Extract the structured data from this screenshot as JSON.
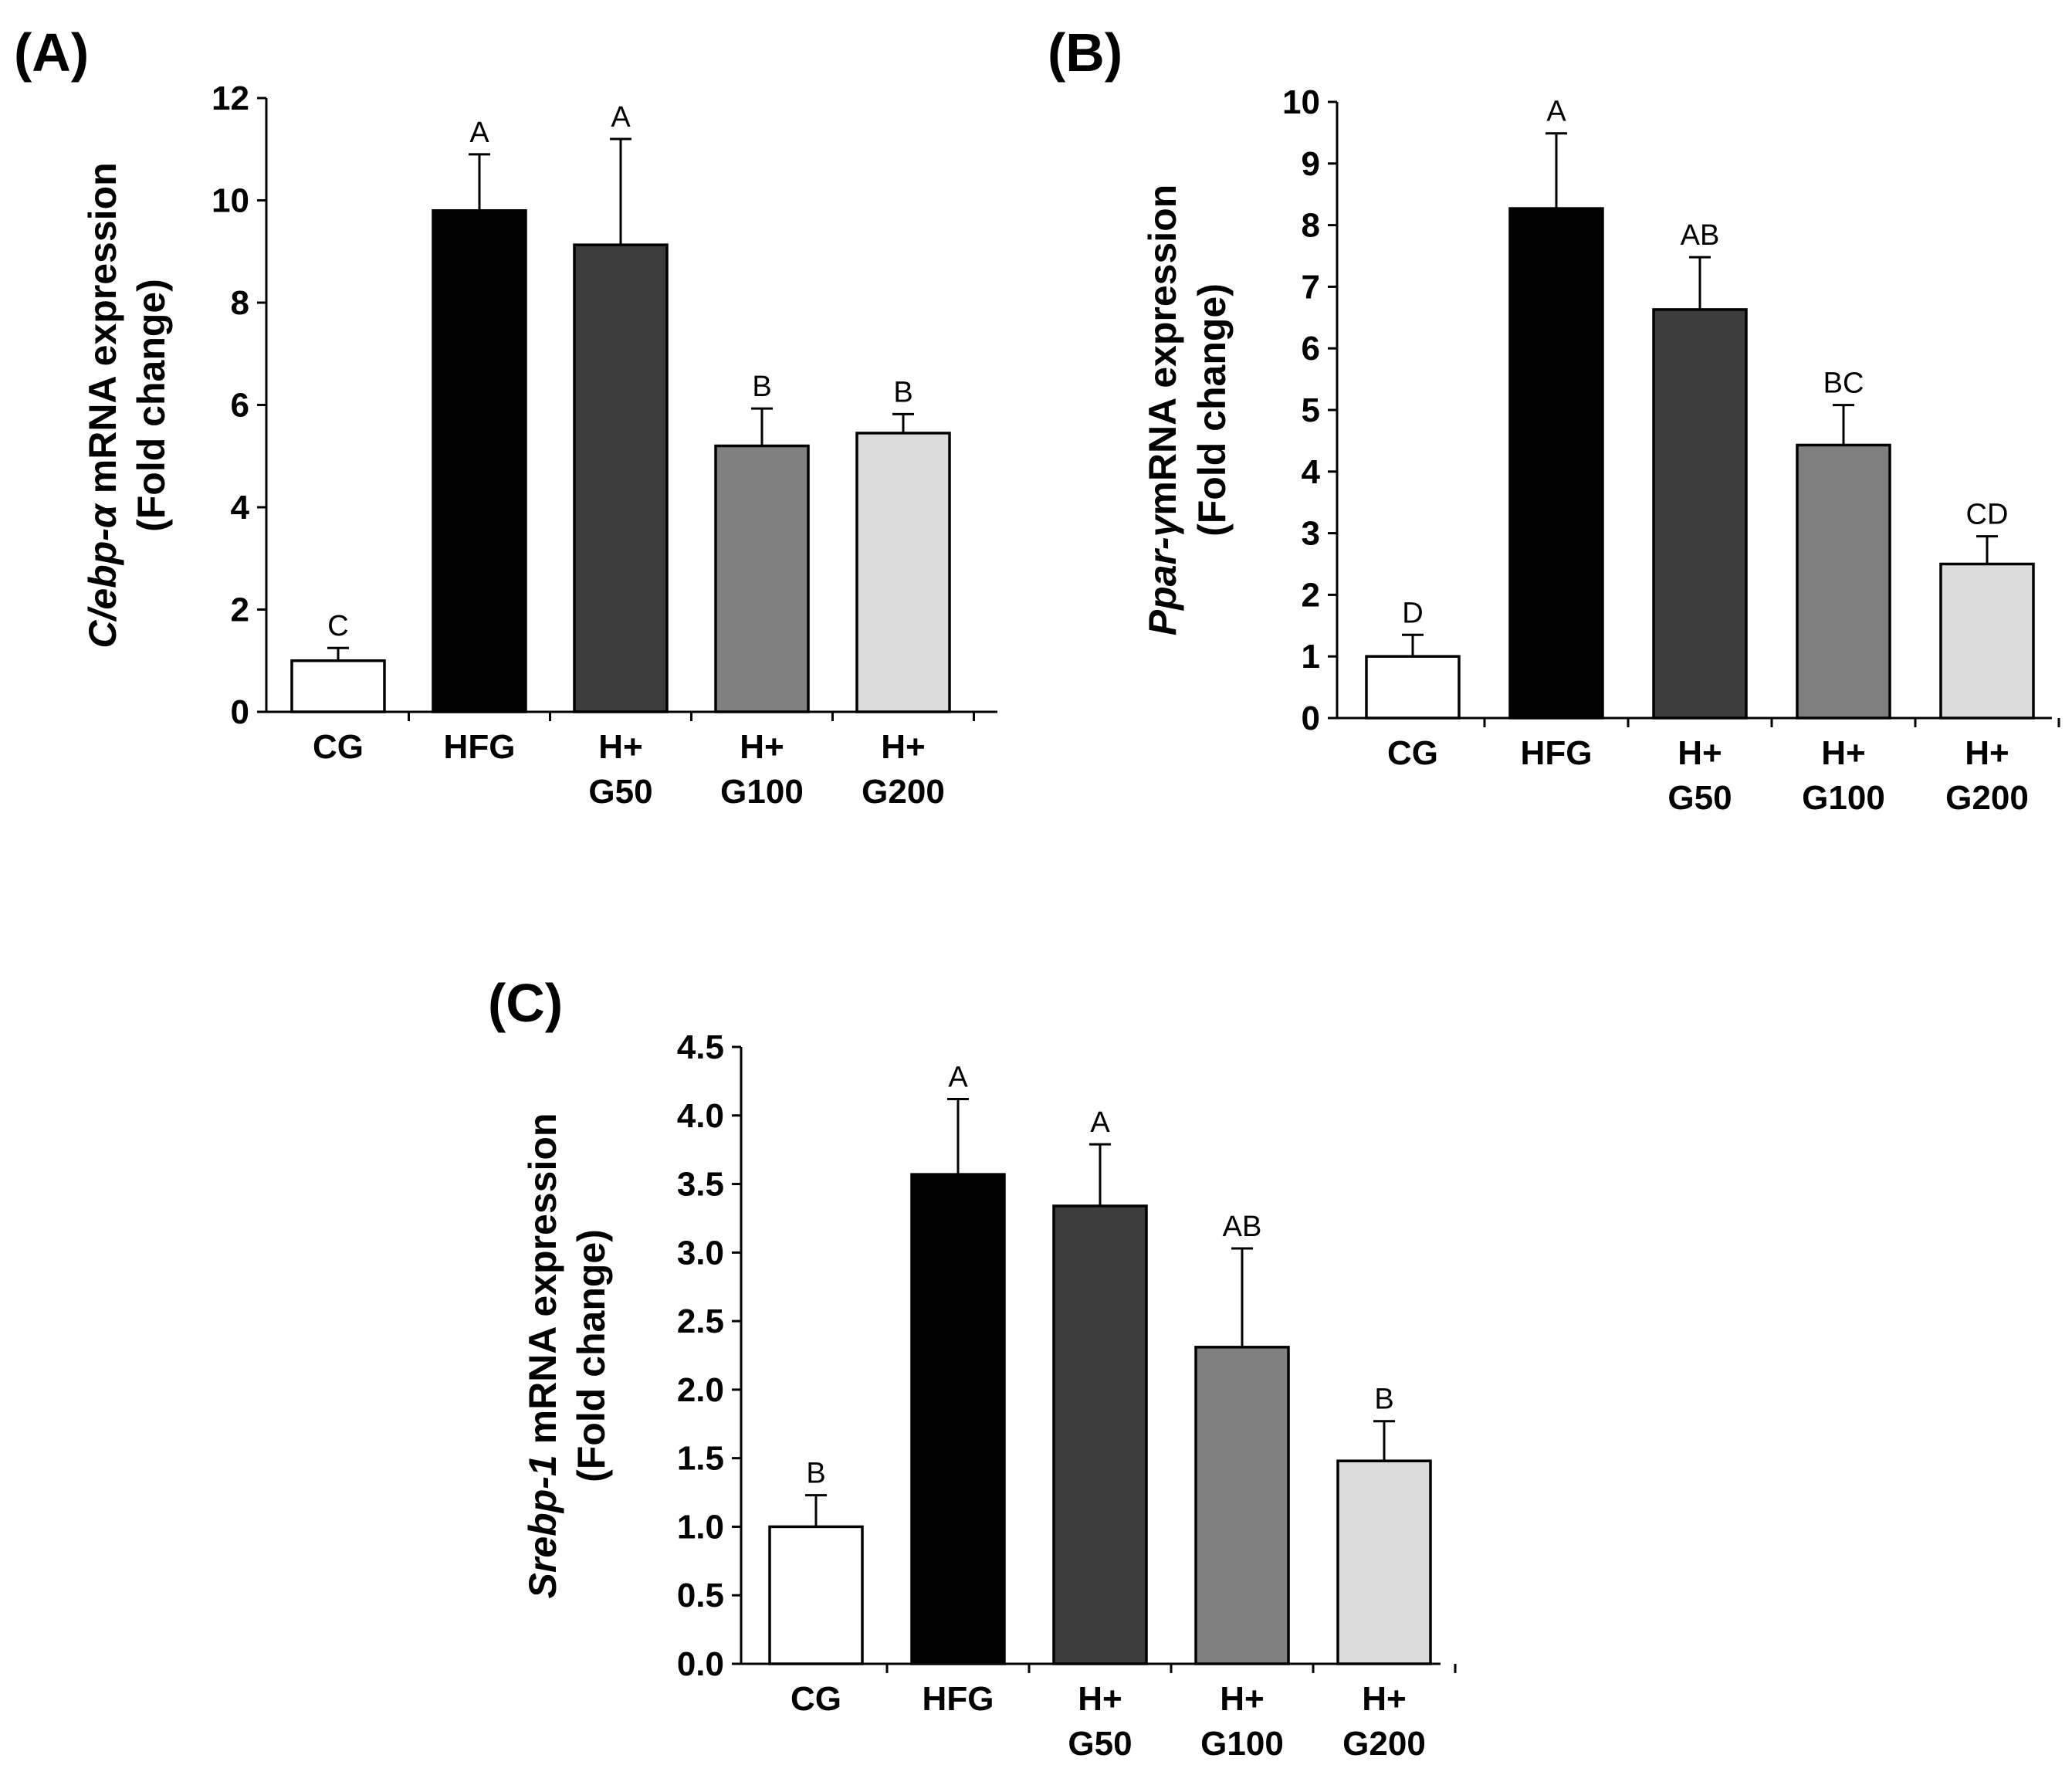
{
  "chart_data": [
    {
      "type": "bar",
      "panel": "(A)",
      "ylabel_gene": "C/ebp-α",
      "ylabel_rest": " mRNA expression",
      "ylabel_line2": "(Fold change)",
      "categories": [
        [
          "CG"
        ],
        [
          "HFG"
        ],
        [
          "H+",
          "G50"
        ],
        [
          "H+",
          "G100"
        ],
        [
          "H+",
          "G200"
        ]
      ],
      "values": [
        1.0,
        9.8,
        9.13,
        5.2,
        5.45
      ],
      "errors": [
        0.25,
        1.1,
        2.07,
        0.73,
        0.37
      ],
      "significance": [
        "C",
        "A",
        "A",
        "B",
        "B"
      ],
      "ylim": [
        0,
        12
      ],
      "yticks": [
        0,
        2,
        4,
        6,
        8,
        10,
        12
      ],
      "ytick_labels": [
        "0",
        "2",
        "4",
        "6",
        "8",
        "10",
        "12"
      ]
    },
    {
      "type": "bar",
      "panel": "(B)",
      "ylabel_gene": "Ppar-γ",
      "ylabel_rest": "mRNA expression",
      "ylabel_line2": "(Fold change)",
      "categories": [
        [
          "CG"
        ],
        [
          "HFG"
        ],
        [
          "H+",
          "G50"
        ],
        [
          "H+",
          "G100"
        ],
        [
          "H+",
          "G200"
        ]
      ],
      "values": [
        1.0,
        8.27,
        6.63,
        4.43,
        2.5
      ],
      "errors": [
        0.35,
        1.22,
        0.85,
        0.65,
        0.45
      ],
      "significance": [
        "D",
        "A",
        "AB",
        "BC",
        "CD"
      ],
      "ylim": [
        0,
        10
      ],
      "yticks": [
        0,
        1,
        2,
        3,
        4,
        5,
        6,
        7,
        8,
        9,
        10
      ],
      "ytick_labels": [
        "0",
        "1",
        "2",
        "3",
        "4",
        "5",
        "6",
        "7",
        "8",
        "9",
        "10"
      ]
    },
    {
      "type": "bar",
      "panel": "(C)",
      "ylabel_gene": "Srebp-1",
      "ylabel_rest": " mRNA expression",
      "ylabel_line2": "(Fold change)",
      "categories": [
        [
          "CG"
        ],
        [
          "HFG"
        ],
        [
          "H+",
          "G50"
        ],
        [
          "H+",
          "G100"
        ],
        [
          "H+",
          "G200"
        ]
      ],
      "values": [
        1.0,
        3.57,
        3.34,
        2.31,
        1.48
      ],
      "errors": [
        0.23,
        0.55,
        0.45,
        0.72,
        0.29
      ],
      "significance": [
        "B",
        "A",
        "A",
        "AB",
        "B"
      ],
      "ylim": [
        0,
        4.5
      ],
      "yticks": [
        0,
        0.5,
        1.0,
        1.5,
        2.0,
        2.5,
        3.0,
        3.5,
        4.0,
        4.5
      ],
      "ytick_labels": [
        "0.0",
        "0.5",
        "1.0",
        "1.5",
        "2.0",
        "2.5",
        "3.0",
        "3.5",
        "4.0",
        "4.5"
      ]
    }
  ],
  "colors": {
    "bar_fills": [
      "#ffffff",
      "#000000",
      "#3d3d3d",
      "#808080",
      "#dcdcdc"
    ],
    "axis": "#000000",
    "background": "#ffffff"
  }
}
